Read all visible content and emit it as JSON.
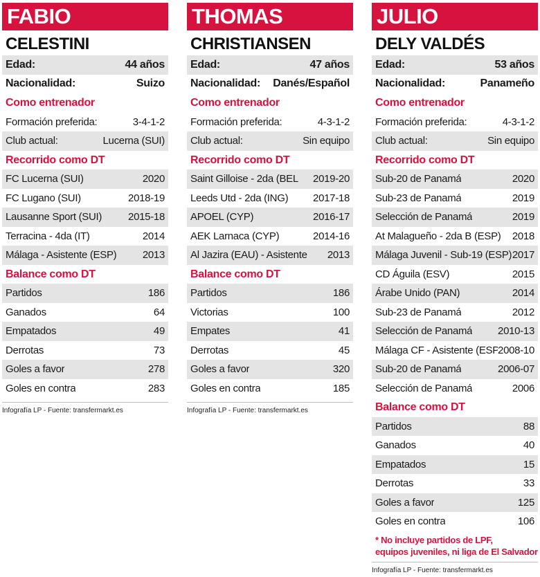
{
  "columns": [
    {
      "first_name": "FABIO",
      "last_name": "CELESTINI",
      "edad_label": "Edad:",
      "edad": "44 años",
      "nac_label": "Nacionalidad:",
      "nac": "Suizo",
      "coach_heading": "Como entrenador",
      "formacion_label": "Formación preferida:",
      "formacion": "3-4-1-2",
      "club_label": "Club actual:",
      "club": "Lucerna (SUI)",
      "career_heading": "Recorrido como DT",
      "career": [
        {
          "team": "FC Lucerna (SUI)",
          "year": "2020"
        },
        {
          "team": "FC Lugano (SUI)",
          "year": "2018-19"
        },
        {
          "team": "Lausanne Sport (SUI)",
          "year": "2015-18"
        },
        {
          "team": "Terracina - 4da (IT)",
          "year": "2014"
        },
        {
          "team": "Málaga - Asistente (ESP)",
          "year": "2013"
        }
      ],
      "balance_heading": "Balance como DT",
      "balance": [
        {
          "label": "Partidos",
          "value": "186"
        },
        {
          "label": "Ganados",
          "value": "64"
        },
        {
          "label": "Empatados",
          "value": "49"
        },
        {
          "label": "Derrotas",
          "value": "73"
        },
        {
          "label": "Goles a favor",
          "value": "278"
        },
        {
          "label": "Goles en contra",
          "value": "283"
        }
      ],
      "source": "Infografía LP - Fuente: transfermarkt.es"
    },
    {
      "first_name": "THOMAS",
      "last_name": "CHRISTIANSEN",
      "edad_label": "Edad:",
      "edad": "47 años",
      "nac_label": "Nacionalidad:",
      "nac": "Danés/Español",
      "coach_heading": "Como entrenador",
      "formacion_label": "Formación preferida:",
      "formacion": "4-3-1-2",
      "club_label": "Club actual:",
      "club": "Sin equipo",
      "career_heading": "Recorrido como DT",
      "career": [
        {
          "team": "Saint Gilloise - 2da (BEL",
          "year": "2019-20"
        },
        {
          "team": "Leeds Utd - 2da (ING)",
          "year": "2017-18"
        },
        {
          "team": "APOEL (CYP)",
          "year": "2016-17"
        },
        {
          "team": "AEK Larnaca (CYP)",
          "year": "2014-16"
        },
        {
          "team": "Al Jazira (EAU) - Asistente",
          "year": "2013"
        }
      ],
      "balance_heading": "Balance como DT",
      "balance": [
        {
          "label": "Partidos",
          "value": "186"
        },
        {
          "label": "Victorias",
          "value": "100"
        },
        {
          "label": "Empates",
          "value": "41"
        },
        {
          "label": "Derrotas",
          "value": "45"
        },
        {
          "label": "Goles a favor",
          "value": "320"
        },
        {
          "label": "Goles en contra",
          "value": "185"
        }
      ],
      "source": "Infografía LP - Fuente: transfermarkt.es"
    },
    {
      "first_name": "JULIO",
      "last_name": "DELY VALDÉS",
      "edad_label": "Edad:",
      "edad": "53 años",
      "nac_label": "Nacionalidad:",
      "nac": "Panameño",
      "coach_heading": "Como entrenador",
      "formacion_label": "Formación preferida:",
      "formacion": "4-3-1-2",
      "club_label": "Club actual:",
      "club": "Sin equipo",
      "career_heading": "Recorrido como DT",
      "career": [
        {
          "team": "Sub-20 de Panamá",
          "year": "2020"
        },
        {
          "team": "Sub-23 de Panamá",
          "year": "2019"
        },
        {
          "team": "Selección de Panamá",
          "year": "2019"
        },
        {
          "team": "At Malagueño - 2da B (ESP)",
          "year": "2018"
        },
        {
          "team": "Málaga Juvenil - Sub-19 (ESP)",
          "year": "2017"
        },
        {
          "team": "CD Águila (ESV)",
          "year": "2015"
        },
        {
          "team": "Árabe Unido (PAN)",
          "year": "2014"
        },
        {
          "team": "Sub-23 de Panamá",
          "year": "2012"
        },
        {
          "team": "Selección de Panamá",
          "year": "2010-13"
        },
        {
          "team": "Málaga CF - Asistente (ESP)",
          "year": "2008-10"
        },
        {
          "team": "Sub-20 de Panamá",
          "year": "2006-07"
        },
        {
          "team": "Selección de Panamá",
          "year": "2006"
        }
      ],
      "balance_heading": "Balance como DT",
      "balance": [
        {
          "label": "Partidos",
          "value": "88"
        },
        {
          "label": "Ganados",
          "value": "40"
        },
        {
          "label": "Empatados",
          "value": "15"
        },
        {
          "label": "Derrotas",
          "value": "33"
        },
        {
          "label": "Goles a favor",
          "value": "125"
        },
        {
          "label": "Goles en contra",
          "value": "106"
        }
      ],
      "note_line1": "* No incluye partidos de LPF,",
      "note_line2": "equipos juveniles, ni liga de El Salvador",
      "source": "Infografía LP - Fuente: transfermarkt.es"
    }
  ]
}
